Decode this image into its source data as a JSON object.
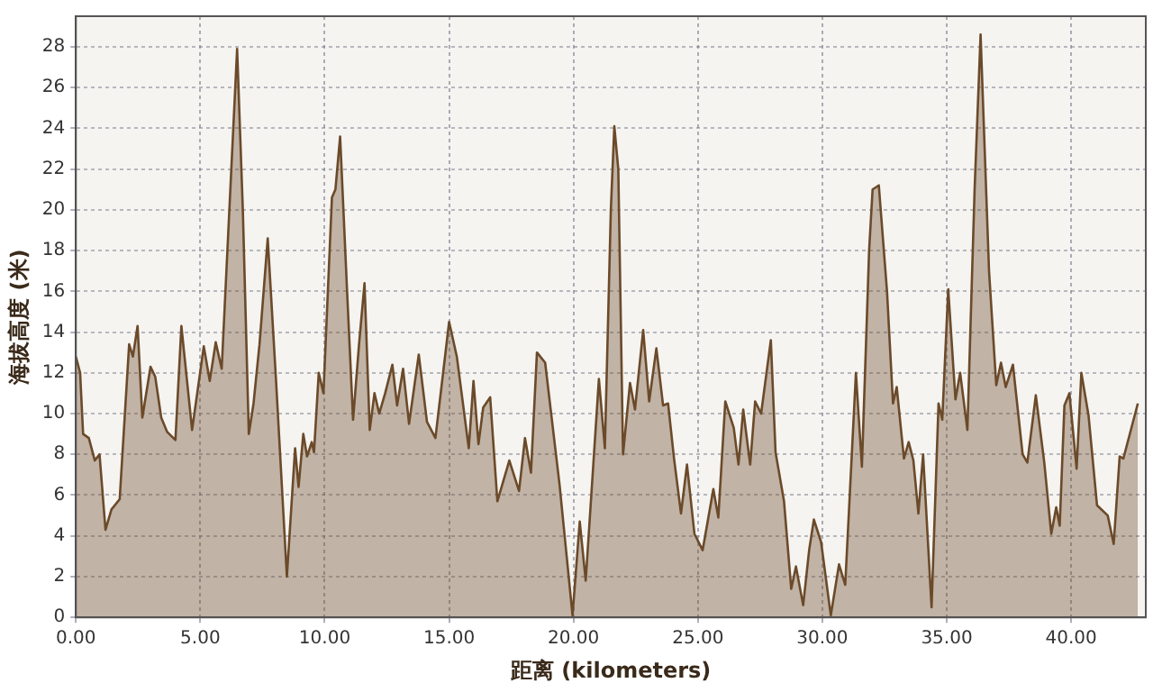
{
  "chart_data": {
    "type": "area",
    "xlabel": "距离 (kilometers)",
    "ylabel": "海拔高度 (米)",
    "xlim": [
      0,
      43
    ],
    "ylim": [
      0,
      29.5
    ],
    "xticks": [
      {
        "value": 0,
        "label": "0.00"
      },
      {
        "value": 5,
        "label": "5.00"
      },
      {
        "value": 10,
        "label": "10.00"
      },
      {
        "value": 15,
        "label": "15.00"
      },
      {
        "value": 20,
        "label": "20.00"
      },
      {
        "value": 25,
        "label": "25.00"
      },
      {
        "value": 30,
        "label": "30.00"
      },
      {
        "value": 35,
        "label": "35.00"
      },
      {
        "value": 40,
        "label": "40.00"
      }
    ],
    "yticks": [
      0,
      2,
      4,
      6,
      8,
      10,
      12,
      14,
      16,
      18,
      20,
      22,
      24,
      26,
      28
    ],
    "grid": true,
    "legend": false,
    "x": [
      0,
      0.17,
      0.29,
      0.52,
      0.76,
      0.95,
      1.19,
      1.43,
      1.76,
      2.14,
      2.29,
      2.48,
      2.67,
      3.0,
      3.19,
      3.43,
      3.67,
      4.0,
      4.24,
      4.67,
      5.14,
      5.38,
      5.62,
      5.86,
      6.48,
      6.71,
      6.95,
      7.14,
      7.38,
      7.71,
      8.05,
      8.48,
      8.81,
      8.95,
      9.14,
      9.29,
      9.48,
      9.57,
      9.76,
      9.95,
      10.29,
      10.43,
      10.62,
      10.9,
      11.14,
      11.38,
      11.6,
      11.81,
      12.0,
      12.19,
      12.43,
      12.72,
      12.91,
      13.15,
      13.39,
      13.78,
      14.11,
      14.45,
      15.0,
      15.31,
      15.79,
      15.98,
      16.18,
      16.37,
      16.65,
      16.94,
      17.42,
      17.81,
      18.05,
      18.29,
      18.53,
      18.86,
      19.44,
      19.96,
      20.25,
      20.49,
      21.02,
      21.26,
      21.5,
      21.64,
      21.8,
      21.99,
      22.27,
      22.47,
      22.8,
      23.04,
      23.33,
      23.6,
      23.8,
      24.04,
      24.32,
      24.56,
      24.86,
      25.19,
      25.62,
      25.82,
      26.1,
      26.44,
      26.63,
      26.82,
      27.1,
      27.3,
      27.54,
      27.93,
      28.12,
      28.46,
      28.75,
      28.94,
      29.23,
      29.47,
      29.66,
      29.95,
      30.34,
      30.67,
      30.92,
      31.35,
      31.59,
      31.88,
      32.02,
      32.27,
      32.6,
      32.84,
      32.99,
      33.28,
      33.47,
      33.66,
      33.86,
      34.05,
      34.39,
      34.67,
      34.82,
      35.06,
      35.35,
      35.54,
      35.83,
      36.12,
      36.36,
      36.7,
      36.99,
      37.18,
      37.37,
      37.66,
      38.05,
      38.24,
      38.58,
      38.92,
      39.2,
      39.4,
      39.54,
      39.73,
      39.93,
      40.22,
      40.41,
      40.7,
      41.04,
      41.47,
      41.71,
      41.95,
      42.1,
      42.68
    ],
    "series": [
      {
        "color": "#6b4a2a",
        "values": [
          12.8,
          12,
          9,
          8.8,
          7.7,
          8,
          4.3,
          5.3,
          5.8,
          13.4,
          12.8,
          14.3,
          9.8,
          12.3,
          11.8,
          9.8,
          9.1,
          8.7,
          14.3,
          9.2,
          13.3,
          11.6,
          13.5,
          12.2,
          27.9,
          20,
          9,
          10.5,
          13.4,
          18.6,
          11.5,
          2,
          8.3,
          6.4,
          9,
          7.9,
          8.6,
          8.1,
          12,
          11,
          20.6,
          21,
          23.6,
          16,
          9.7,
          13.4,
          16.4,
          9.2,
          11,
          10,
          11,
          12.4,
          10.4,
          12.2,
          9.5,
          12.9,
          9.6,
          8.8,
          14.5,
          12.8,
          8.3,
          11.6,
          8.5,
          10.3,
          10.8,
          5.7,
          7.7,
          6.2,
          8.8,
          7.1,
          13,
          12.5,
          6.5,
          0.1,
          4.7,
          1.8,
          11.7,
          8.3,
          20,
          24.1,
          22,
          8,
          11.5,
          10.2,
          14.1,
          10.6,
          13.2,
          10.4,
          10.5,
          7.8,
          5.1,
          7.5,
          4.1,
          3.3,
          6.3,
          4.9,
          10.6,
          9.3,
          7.5,
          10.2,
          7.5,
          10.6,
          10,
          13.6,
          8.1,
          5.7,
          1.4,
          2.5,
          0.6,
          3.3,
          4.8,
          3.7,
          0.1,
          2.6,
          1.6,
          12,
          7.4,
          18,
          21,
          21.2,
          16,
          10.5,
          11.3,
          7.8,
          8.6,
          7.7,
          5.1,
          8,
          0.5,
          10.5,
          9.7,
          16.1,
          10.7,
          12,
          9.2,
          21,
          28.6,
          17,
          11.4,
          12.5,
          11.3,
          12.4,
          8,
          7.6,
          10.9,
          7.6,
          4.1,
          5.4,
          4.5,
          10.4,
          11,
          7.3,
          12,
          9.9,
          5.5,
          5,
          3.6,
          7.9,
          7.8,
          10.5
        ]
      }
    ]
  }
}
